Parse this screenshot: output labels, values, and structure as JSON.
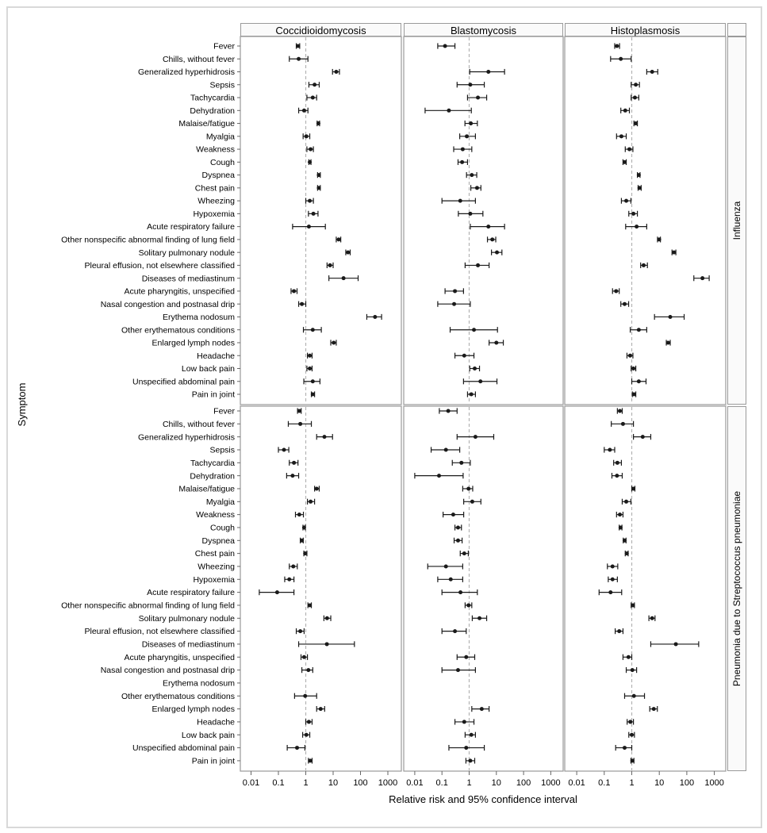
{
  "figure": {
    "column_headers": [
      "Coccidioidomycosis",
      "Blastomycosis",
      "Histoplasmosis"
    ],
    "row_headers": [
      "Influenza",
      "Pneumonia due to Streptococcus pneumoniae"
    ],
    "x_axis_title": "Relative risk and 95% confidence interval",
    "y_axis_title": "Symptom",
    "x_tick_labels": [
      "0.01",
      "0.1",
      "1",
      "10",
      "100",
      "1000"
    ],
    "colors": {
      "marker": "#1a1a1a",
      "panel_border": "#9a9a9a",
      "reference_line": "#b3b3b3",
      "strip_fill": "#fafafa"
    }
  },
  "chart_data": {
    "type": "scatter",
    "subtype": "forest-plot",
    "title": "",
    "xlabel": "Relative risk and 95% confidence interval",
    "ylabel": "Symptom",
    "x_scale": "log",
    "xlim": [
      0.01,
      1000
    ],
    "x_ticks": [
      0.01,
      0.1,
      1,
      10,
      100,
      1000
    ],
    "reference_line": 1,
    "grid": false,
    "columns": [
      "Coccidioidomycosis",
      "Blastomycosis",
      "Histoplasmosis"
    ],
    "rows": [
      "Influenza",
      "Pneumonia due to Streptococcus pneumoniae"
    ],
    "symptoms": [
      "Fever",
      "Chills, without fever",
      "Generalized hyperhidrosis",
      "Sepsis",
      "Tachycardia",
      "Dehydration",
      "Malaise/fatigue",
      "Myalgia",
      "Weakness",
      "Cough",
      "Dyspnea",
      "Chest pain",
      "Wheezing",
      "Hypoxemia",
      "Acute respiratory failure",
      "Other nonspecific abnormal finding of lung field",
      "Solitary pulmonary nodule",
      "Pleural effusion, not elsewhere classified",
      "Diseases of mediastinum",
      "Acute pharyngitis, unspecified",
      "Nasal congestion and postnasal drip",
      "Erythema nodosum",
      "Other erythematous conditions",
      "Enlarged lymph nodes",
      "Headache",
      "Low back pain",
      "Unspecified abdominal pain",
      "Pain in joint"
    ],
    "estimates_format": "[relative_risk, ci_lower, ci_upper] per symptom; null = not reported",
    "estimates": {
      "Influenza": {
        "Coccidioidomycosis": [
          [
            0.52,
            0.45,
            0.6
          ],
          [
            0.55,
            0.25,
            1.2
          ],
          [
            13,
            9.5,
            17
          ],
          [
            2.1,
            1.3,
            3.1
          ],
          [
            1.8,
            1.1,
            2.5
          ],
          [
            0.87,
            0.55,
            1.2
          ],
          [
            2.9,
            2.6,
            3.2
          ],
          [
            1.05,
            0.8,
            1.4
          ],
          [
            1.5,
            1.1,
            1.9
          ],
          [
            1.4,
            1.3,
            1.55
          ],
          [
            3.0,
            2.7,
            3.4
          ],
          [
            3.0,
            2.7,
            3.4
          ],
          [
            1.4,
            1.0,
            1.9
          ],
          [
            1.9,
            1.25,
            2.8
          ],
          [
            1.3,
            0.33,
            5.2
          ],
          [
            16,
            13,
            19
          ],
          [
            35,
            29,
            42
          ],
          [
            7.7,
            6.0,
            10
          ],
          [
            24,
            7.0,
            82
          ],
          [
            0.37,
            0.29,
            0.48
          ],
          [
            0.72,
            0.55,
            1.0
          ],
          [
            340,
            170,
            590
          ],
          [
            1.8,
            0.82,
            3.7
          ],
          [
            10.5,
            8.2,
            13
          ],
          [
            1.4,
            1.15,
            1.7
          ],
          [
            1.4,
            1.1,
            1.7
          ],
          [
            1.8,
            0.85,
            3.3
          ],
          [
            1.8,
            1.6,
            2.1
          ]
        ],
        "Blastomycosis": [
          [
            0.13,
            0.07,
            0.3
          ],
          null,
          [
            5.1,
            1.05,
            20
          ],
          [
            1.1,
            0.36,
            3.6
          ],
          [
            2.1,
            0.87,
            4.4
          ],
          [
            0.18,
            0.024,
            1.2
          ],
          [
            1.15,
            0.7,
            2.0
          ],
          [
            0.82,
            0.45,
            1.7
          ],
          [
            0.58,
            0.27,
            1.25
          ],
          [
            0.55,
            0.39,
            0.87
          ],
          [
            1.25,
            0.8,
            1.9
          ],
          [
            1.95,
            1.15,
            2.7
          ],
          [
            0.47,
            0.1,
            1.7
          ],
          [
            1.1,
            0.4,
            3.2
          ],
          [
            5.1,
            1.1,
            20
          ],
          [
            7.1,
            4.7,
            9.5
          ],
          [
            10.5,
            6.6,
            16
          ],
          [
            2.1,
            0.71,
            5.4
          ],
          null,
          [
            0.3,
            0.13,
            0.62
          ],
          [
            0.28,
            0.07,
            1.1
          ],
          null,
          [
            1.5,
            0.2,
            11
          ],
          [
            10,
            5.4,
            18
          ],
          [
            0.66,
            0.3,
            1.5
          ],
          [
            1.6,
            1.05,
            2.4
          ],
          [
            2.6,
            0.62,
            10.5
          ],
          [
            1.2,
            0.87,
            1.7
          ]
        ],
        "Histoplasmosis": [
          [
            0.29,
            0.24,
            0.36
          ],
          [
            0.4,
            0.17,
            0.95
          ],
          [
            5.5,
            3.5,
            8.8
          ],
          [
            1.4,
            0.95,
            1.9
          ],
          [
            1.3,
            0.95,
            1.8
          ],
          [
            0.58,
            0.4,
            0.82
          ],
          [
            1.4,
            1.2,
            1.6
          ],
          [
            0.42,
            0.28,
            0.63
          ],
          [
            0.82,
            0.58,
            1.1
          ],
          [
            0.55,
            0.48,
            0.63
          ],
          [
            1.8,
            1.6,
            2.0
          ],
          [
            1.9,
            1.7,
            2.2
          ],
          [
            0.63,
            0.42,
            0.93
          ],
          [
            1.15,
            0.78,
            1.6
          ],
          [
            1.5,
            0.6,
            3.5
          ],
          [
            9.9,
            8.6,
            11
          ],
          [
            34,
            29,
            40
          ],
          [
            2.7,
            2.1,
            3.7
          ],
          [
            370,
            180,
            650
          ],
          [
            0.27,
            0.2,
            0.35
          ],
          [
            0.55,
            0.4,
            0.77
          ],
          [
            25,
            6.7,
            80
          ],
          [
            1.8,
            0.88,
            3.5
          ],
          [
            21,
            18,
            25
          ],
          [
            0.87,
            0.67,
            1.1
          ],
          [
            1.15,
            0.95,
            1.4
          ],
          [
            1.8,
            1.0,
            3.3
          ],
          [
            1.2,
            1.05,
            1.4
          ]
        ]
      },
      "Pneumonia due to Streptococcus pneumoniae": {
        "Coccidioidomycosis": [
          [
            0.58,
            0.5,
            0.68
          ],
          [
            0.63,
            0.23,
            1.6
          ],
          [
            4.8,
            2.5,
            9.5
          ],
          [
            0.16,
            0.1,
            0.24
          ],
          [
            0.37,
            0.25,
            0.52
          ],
          [
            0.33,
            0.2,
            0.55
          ],
          [
            2.5,
            2.1,
            3.1
          ],
          [
            1.5,
            1.15,
            2.1
          ],
          [
            0.58,
            0.42,
            0.82
          ],
          [
            0.87,
            0.79,
            0.96
          ],
          [
            0.72,
            0.63,
            0.81
          ],
          [
            0.95,
            0.85,
            1.1
          ],
          [
            0.35,
            0.25,
            0.49
          ],
          [
            0.25,
            0.17,
            0.37
          ],
          [
            0.09,
            0.02,
            0.37
          ],
          [
            1.4,
            1.2,
            1.6
          ],
          [
            6.0,
            4.6,
            8.2
          ],
          [
            0.63,
            0.45,
            0.87
          ],
          [
            5.9,
            0.55,
            60
          ],
          [
            0.87,
            0.67,
            1.15
          ],
          [
            1.25,
            0.72,
            1.8
          ],
          null,
          [
            0.95,
            0.39,
            2.5
          ],
          [
            3.5,
            2.5,
            4.9
          ],
          [
            1.3,
            1.0,
            1.7
          ],
          [
            1.05,
            0.77,
            1.4
          ],
          [
            0.48,
            0.21,
            0.93
          ],
          [
            1.45,
            1.25,
            1.7
          ]
        ],
        "Blastomycosis": [
          [
            0.17,
            0.08,
            0.36
          ],
          null,
          [
            1.7,
            0.36,
            8.0
          ],
          [
            0.14,
            0.04,
            0.45
          ],
          [
            0.52,
            0.24,
            1.1
          ],
          [
            0.078,
            0.01,
            0.6
          ],
          [
            0.95,
            0.58,
            1.35
          ],
          [
            1.3,
            0.63,
            2.7
          ],
          [
            0.26,
            0.11,
            0.63
          ],
          [
            0.39,
            0.3,
            0.52
          ],
          [
            0.39,
            0.28,
            0.55
          ],
          [
            0.66,
            0.47,
            0.93
          ],
          [
            0.14,
            0.03,
            0.58
          ],
          [
            0.21,
            0.07,
            0.58
          ],
          [
            0.48,
            0.1,
            2.0
          ],
          [
            0.95,
            0.71,
            1.25
          ],
          [
            2.4,
            1.3,
            4.4
          ],
          [
            0.3,
            0.1,
            0.78
          ],
          null,
          [
            0.78,
            0.36,
            1.6
          ],
          [
            0.39,
            0.1,
            1.7
          ],
          null,
          null,
          [
            2.9,
            1.25,
            5.4
          ],
          [
            0.66,
            0.3,
            1.5
          ],
          [
            1.2,
            0.71,
            1.7
          ],
          [
            0.78,
            0.18,
            3.6
          ],
          [
            1.1,
            0.76,
            1.6
          ]
        ],
        "Histoplasmosis": [
          [
            0.37,
            0.3,
            0.45
          ],
          [
            0.48,
            0.18,
            1.15
          ],
          [
            2.5,
            1.15,
            4.9
          ],
          [
            0.16,
            0.1,
            0.24
          ],
          [
            0.3,
            0.22,
            0.42
          ],
          [
            0.29,
            0.19,
            0.45
          ],
          [
            1.15,
            1.0,
            1.3
          ],
          [
            0.63,
            0.45,
            0.93
          ],
          [
            0.37,
            0.28,
            0.48
          ],
          [
            0.39,
            0.35,
            0.44
          ],
          [
            0.55,
            0.49,
            0.62
          ],
          [
            0.66,
            0.58,
            0.74
          ],
          [
            0.2,
            0.13,
            0.31
          ],
          [
            0.2,
            0.14,
            0.3
          ],
          [
            0.17,
            0.065,
            0.43
          ],
          [
            1.1,
            0.95,
            1.25
          ],
          [
            5.5,
            4.2,
            7.0
          ],
          [
            0.35,
            0.25,
            0.48
          ],
          [
            40,
            4.9,
            270
          ],
          [
            0.76,
            0.48,
            1.0
          ],
          [
            1.05,
            0.63,
            1.5
          ],
          null,
          [
            1.2,
            0.55,
            2.9
          ],
          [
            6.3,
            4.5,
            8.5
          ],
          [
            0.89,
            0.68,
            1.15
          ],
          [
            1.0,
            0.78,
            1.25
          ],
          [
            0.55,
            0.26,
            1.0
          ],
          [
            1.05,
            0.93,
            1.2
          ]
        ]
      }
    }
  }
}
